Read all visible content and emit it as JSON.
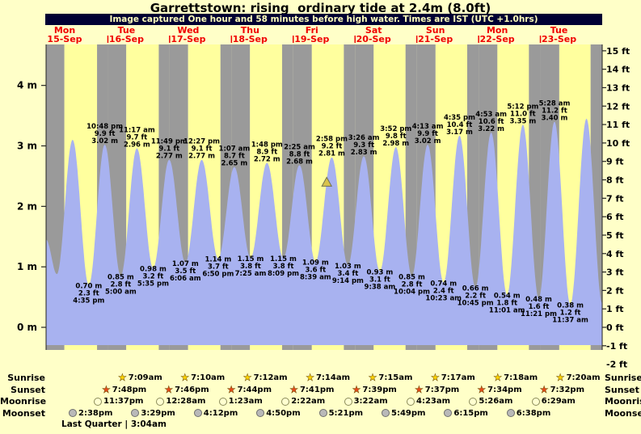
{
  "title": "Garrettstown: rising  ordinary tide at 2.4m (8.0ft)",
  "caption": "Image captured One hour and 58 minutes before high water. Times are IST (UTC +1.0hrs)",
  "days": [
    {
      "dow": "Mon",
      "date": "15-Sep"
    },
    {
      "dow": "Tue",
      "date": "16-Sep"
    },
    {
      "dow": "Wed",
      "date": "17-Sep"
    },
    {
      "dow": "Thu",
      "date": "18-Sep"
    },
    {
      "dow": "Fri",
      "date": "19-Sep"
    },
    {
      "dow": "Sat",
      "date": "20-Sep"
    },
    {
      "dow": "Sun",
      "date": "21-Sep"
    },
    {
      "dow": "Mon",
      "date": "22-Sep"
    },
    {
      "dow": "Tue",
      "date": "23-Sep"
    }
  ],
  "axes": {
    "left": [
      "4 m",
      "3 m",
      "2 m",
      "1 m",
      "0 m"
    ],
    "right": [
      "15 ft",
      "14 ft",
      "13 ft",
      "12 ft",
      "11 ft",
      "10 ft",
      "9 ft",
      "8 ft",
      "7 ft",
      "6 ft",
      "5 ft",
      "4 ft",
      "3 ft",
      "2 ft",
      "1 ft",
      "0 ft",
      "-1 ft",
      "-2 ft"
    ]
  },
  "chart_data": {
    "type": "area",
    "x_range_days": 9,
    "ylim_ft": [
      -2,
      15
    ],
    "ylim_m_labels": [
      0,
      4
    ],
    "legend": "none",
    "grid": "day-night bands (yellow = day, gray = night)",
    "high_tides": [
      {
        "t_hours": 22.8,
        "time": "10:48 pm",
        "ft": "9.9 ft",
        "m": "3.02 m"
      },
      {
        "t_hours": 35.28,
        "time": "11:17 am",
        "ft": "9.7 ft",
        "m": "2.96 m"
      },
      {
        "t_hours": 47.82,
        "time": "11:49 pm",
        "ft": "9.1 ft",
        "m": "2.77 m"
      },
      {
        "t_hours": 60.45,
        "time": "12:27 pm",
        "ft": "9.1 ft",
        "m": "2.77 m"
      },
      {
        "t_hours": 73.12,
        "time": "1:07 am",
        "ft": "8.7 ft",
        "m": "2.65 m"
      },
      {
        "t_hours": 85.8,
        "time": "1:48 pm",
        "ft": "8.9 ft",
        "m": "2.72 m"
      },
      {
        "t_hours": 98.42,
        "time": "2:25 am",
        "ft": "8.8 ft",
        "m": "2.68 m"
      },
      {
        "t_hours": 110.97,
        "time": "2:58 pm",
        "ft": "9.2 ft",
        "m": "2.81 m"
      },
      {
        "t_hours": 123.43,
        "time": "3:26 am",
        "ft": "9.3 ft",
        "m": "2.83 m"
      },
      {
        "t_hours": 135.87,
        "time": "3:52 pm",
        "ft": "9.8 ft",
        "m": "2.98 m"
      },
      {
        "t_hours": 148.22,
        "time": "4:13 am",
        "ft": "9.9 ft",
        "m": "3.02 m"
      },
      {
        "t_hours": 160.58,
        "time": "4:35 pm",
        "ft": "10.4 ft",
        "m": "3.17 m"
      },
      {
        "t_hours": 172.88,
        "time": "4:53 am",
        "ft": "10.6 ft",
        "m": "3.22 m"
      },
      {
        "t_hours": 185.2,
        "time": "5:12 pm",
        "ft": "11.0 ft",
        "m": "3.35 m"
      },
      {
        "t_hours": 197.47,
        "time": "5:28 am",
        "ft": "11.2 ft",
        "m": "3.40 m"
      }
    ],
    "low_tides": [
      {
        "t_hours": 16.58,
        "m": "0.70 m",
        "ft": "2.3 ft",
        "time": "4:35 pm"
      },
      {
        "t_hours": 29.0,
        "m": "0.85 m",
        "ft": "2.8 ft",
        "time": "5:00 am"
      },
      {
        "t_hours": 41.58,
        "m": "0.98 m",
        "ft": "3.2 ft",
        "time": "5:35 pm"
      },
      {
        "t_hours": 54.1,
        "m": "1.07 m",
        "ft": "3.5 ft",
        "time": "6:06 am"
      },
      {
        "t_hours": 66.83,
        "m": "1.14 m",
        "ft": "3.7 ft",
        "time": "6:50 pm"
      },
      {
        "t_hours": 79.42,
        "m": "1.15 m",
        "ft": "3.8 ft",
        "time": "7:25 am"
      },
      {
        "t_hours": 92.15,
        "m": "1.15 m",
        "ft": "3.8 ft",
        "time": "8:09 pm"
      },
      {
        "t_hours": 104.65,
        "m": "1.09 m",
        "ft": "3.6 ft",
        "time": "8:39 am"
      },
      {
        "t_hours": 117.23,
        "m": "1.03 m",
        "ft": "3.4 ft",
        "time": "9:14 pm"
      },
      {
        "t_hours": 129.63,
        "m": "0.93 m",
        "ft": "3.1 ft",
        "time": "9:38 am"
      },
      {
        "t_hours": 142.07,
        "m": "0.85 m",
        "ft": "2.8 ft",
        "time": "10:04 pm"
      },
      {
        "t_hours": 154.38,
        "m": "0.74 m",
        "ft": "2.4 ft",
        "time": "10:23 am"
      },
      {
        "t_hours": 166.75,
        "m": "0.66 m",
        "ft": "2.2 ft",
        "time": "10:45 pm"
      },
      {
        "t_hours": 179.02,
        "m": "0.54 m",
        "ft": "1.8 ft",
        "time": "11:01 am"
      },
      {
        "t_hours": 191.35,
        "m": "0.48 m",
        "ft": "1.6 ft",
        "time": "11:21 pm"
      },
      {
        "t_hours": 203.62,
        "m": "0.38 m",
        "ft": "1.2 ft",
        "time": "11:37 am"
      }
    ],
    "edge_points": [
      {
        "t_hours": 0.0,
        "height_m": 1.45
      },
      {
        "t_hours": 4.2,
        "height_m": 0.88
      },
      {
        "t_hours": 10.3,
        "height_m": 3.1
      },
      {
        "t_hours": 209.9,
        "height_m": 3.45
      },
      {
        "t_hours": 216.0,
        "height_m": 0.4
      }
    ],
    "marker": {
      "t_hours": 109.0,
      "height_m": 2.4
    },
    "sunrise_h": [
      7.12,
      7.15,
      7.17,
      7.2,
      7.23,
      7.25,
      7.28,
      7.3,
      7.33
    ],
    "sunset_h": [
      19.8,
      19.77,
      19.73,
      19.68,
      19.65,
      19.62,
      19.57,
      19.53,
      19.5
    ]
  },
  "astro": {
    "rows": [
      {
        "label": "Sunrise",
        "icon": "sunrise-icon",
        "times": [
          "7:09am",
          "7:10am",
          "7:12am",
          "7:14am",
          "7:15am",
          "7:17am",
          "7:18am",
          "7:20am"
        ]
      },
      {
        "label": "Sunset",
        "icon": "sunset-icon",
        "times": [
          "7:48pm",
          "7:46pm",
          "7:44pm",
          "7:41pm",
          "7:39pm",
          "7:37pm",
          "7:34pm",
          "7:32pm"
        ]
      },
      {
        "label": "Moonrise",
        "icon": "moonrise-icon",
        "times": [
          "11:37pm",
          "12:28am",
          "1:23am",
          "2:22am",
          "3:22am",
          "4:23am",
          "5:26am",
          "6:29am"
        ]
      },
      {
        "label": "Moonset",
        "icon": "moonset-icon",
        "times": [
          "2:38pm",
          "3:29pm",
          "4:12pm",
          "4:50pm",
          "5:21pm",
          "5:49pm",
          "6:15pm",
          "6:38pm"
        ]
      }
    ],
    "moon_phase": "Last Quarter | 3:04am"
  },
  "colors": {
    "page_bg": "#ffffc8",
    "day_band": "#ffff9e",
    "night_band": "#9a9a9a",
    "tide_fill": "#a8b2f0",
    "caption_bg": "#000033",
    "caption_text": "#ffffbb",
    "date_red": "#f00000",
    "axis_line": "#222222",
    "marker_fill": "#d8c34c",
    "marker_stroke": "#707050",
    "sunrise_star": "#ffd400",
    "sunset_star": "#e8491a",
    "moonrise_icon": "#ffffd0",
    "moonset_icon": "#b9b9b9"
  }
}
